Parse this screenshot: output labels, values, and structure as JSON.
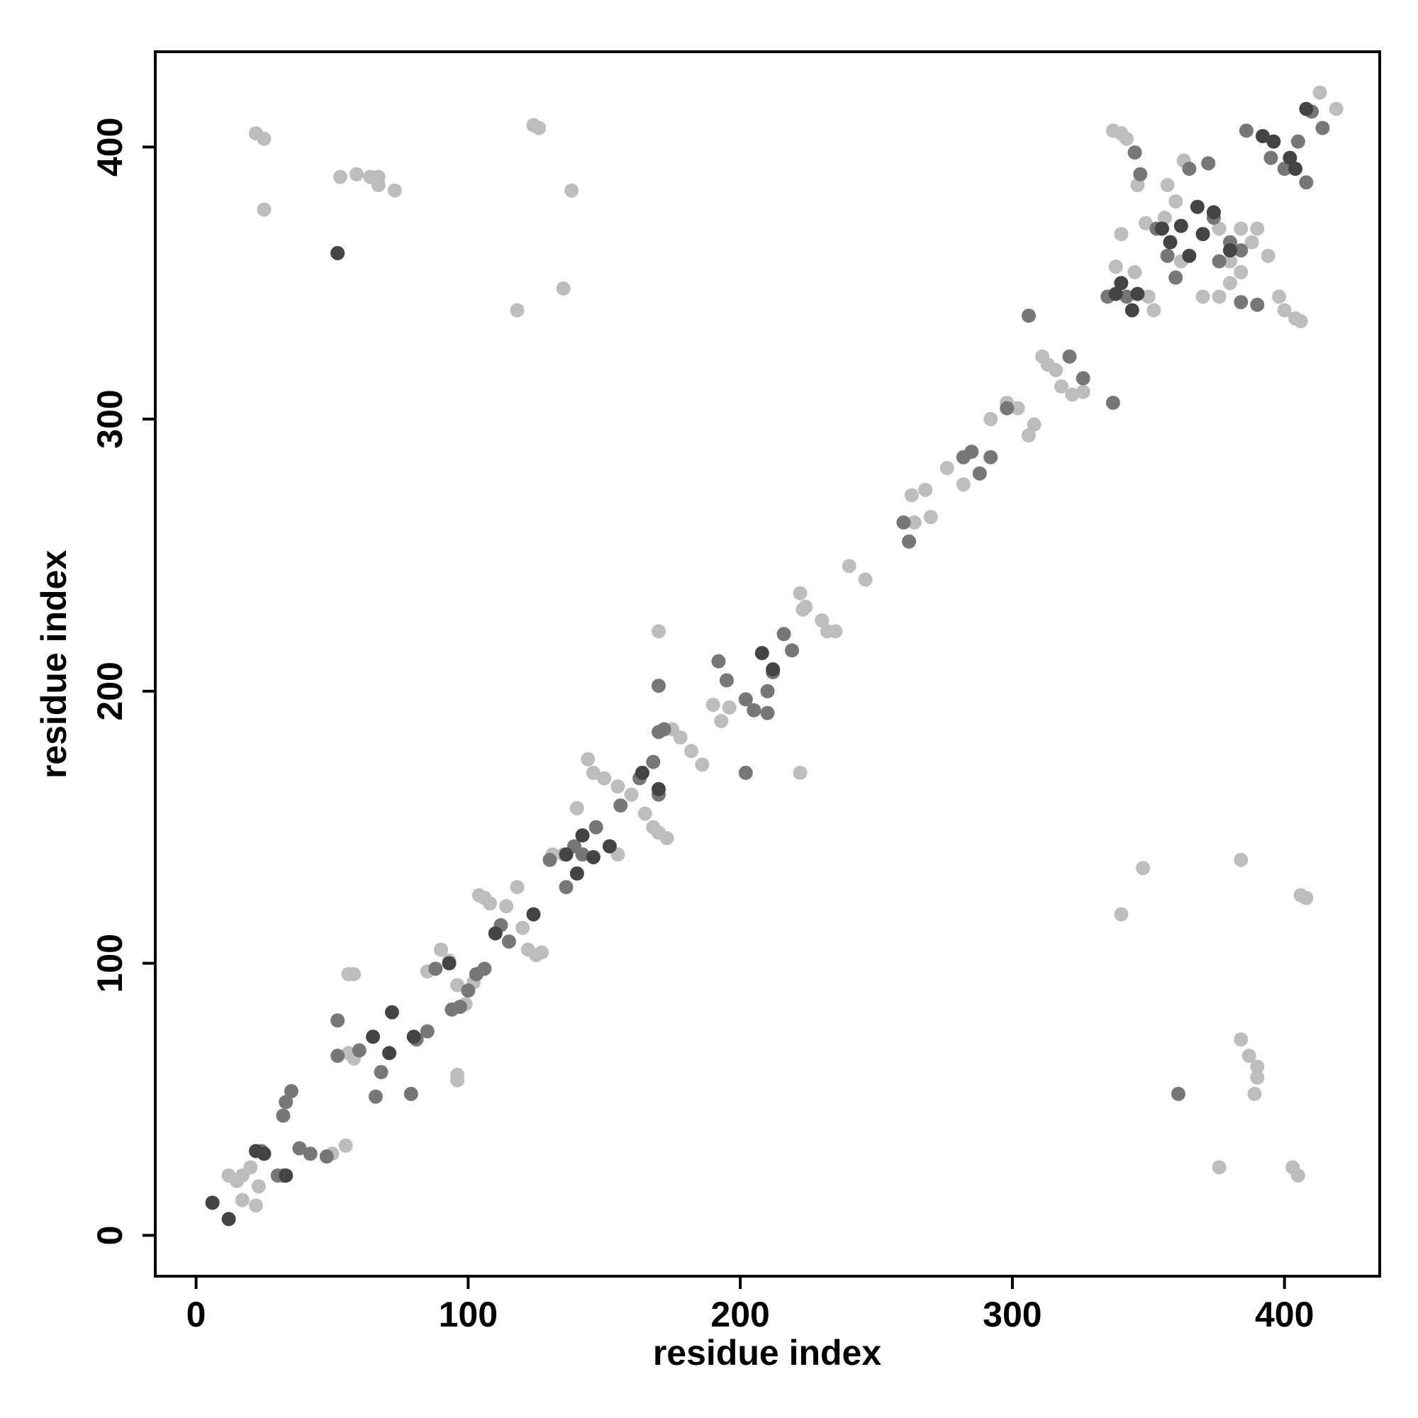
{
  "chart_data": {
    "type": "scatter",
    "x_label": "residue index",
    "y_label": "residue index",
    "xlim": [
      -15,
      435
    ],
    "ylim": [
      -15,
      435
    ],
    "xticks": [
      0,
      100,
      200,
      300,
      400
    ],
    "yticks": [
      0,
      100,
      200,
      300,
      400
    ],
    "series": [
      {
        "color": "#bdbdbd",
        "x": [
          22,
          25,
          25,
          53,
          59,
          64,
          67,
          67,
          73,
          124,
          126,
          118,
          138,
          135,
          240,
          246,
          222,
          224,
          230,
          235,
          170,
          222,
          340,
          348,
          384,
          406,
          408,
          384,
          387,
          390,
          390,
          389,
          376,
          403,
          405,
          413,
          419,
          96,
          96,
          58,
          56,
          155,
          140,
          12,
          15,
          17,
          20,
          17,
          22,
          23,
          50,
          55,
          56,
          58,
          90,
          85,
          93,
          96,
          99,
          102,
          104,
          106,
          108,
          114,
          118,
          120,
          122,
          125,
          127,
          131,
          135,
          144,
          146,
          150,
          155,
          160,
          165,
          168,
          170,
          173,
          175,
          178,
          182,
          186,
          190,
          193,
          196,
          223,
          232,
          263,
          268,
          264,
          270,
          276,
          282,
          292,
          298,
          302,
          306,
          308,
          311,
          313,
          316,
          318,
          322,
          326,
          337,
          340,
          342,
          340,
          338,
          345,
          350,
          352,
          356,
          357,
          360,
          362,
          370,
          376,
          380,
          384,
          384,
          388,
          390,
          394,
          398,
          400,
          404,
          406,
          363,
          376,
          380,
          346,
          349
        ],
        "y": [
          405,
          403,
          377,
          389,
          390,
          389,
          389,
          386,
          384,
          408,
          407,
          340,
          384,
          348,
          246,
          241,
          236,
          231,
          226,
          222,
          222,
          170,
          118,
          135,
          138,
          125,
          124,
          72,
          66,
          62,
          58,
          52,
          25,
          25,
          22,
          420,
          414,
          57,
          59,
          96,
          96,
          140,
          157,
          22,
          20,
          22,
          25,
          13,
          11,
          18,
          30,
          33,
          67,
          65,
          105,
          97,
          101,
          92,
          85,
          93,
          125,
          124,
          122,
          121,
          128,
          113,
          105,
          103,
          104,
          140,
          140,
          175,
          170,
          168,
          165,
          162,
          155,
          150,
          148,
          146,
          186,
          183,
          178,
          173,
          195,
          189,
          194,
          230,
          222,
          272,
          274,
          262,
          264,
          282,
          276,
          300,
          306,
          304,
          294,
          298,
          323,
          320,
          318,
          312,
          309,
          310,
          406,
          405,
          403,
          368,
          356,
          354,
          345,
          340,
          374,
          386,
          380,
          358,
          345,
          345,
          350,
          354,
          370,
          365,
          370,
          360,
          345,
          340,
          337,
          336,
          395,
          370,
          358,
          386,
          372
        ]
      },
      {
        "color": "#777777",
        "x": [
          52,
          52,
          66,
          79,
          32,
          33,
          35,
          30,
          32,
          24,
          38,
          42,
          48,
          60,
          68,
          81,
          85,
          88,
          94,
          97,
          100,
          103,
          106,
          115,
          112,
          130,
          136,
          139,
          142,
          147,
          156,
          163,
          170,
          168,
          170,
          172,
          170,
          192,
          195,
          202,
          205,
          210,
          212,
          216,
          219,
          202,
          210,
          262,
          260,
          282,
          285,
          288,
          292,
          298,
          306,
          321,
          326,
          337,
          335,
          342,
          345,
          347,
          353,
          357,
          360,
          365,
          372,
          374,
          376,
          380,
          384,
          384,
          390,
          395,
          400,
          405,
          408,
          414,
          410,
          361,
          386
        ],
        "y": [
          79,
          66,
          51,
          52,
          44,
          49,
          53,
          22,
          22,
          31,
          32,
          30,
          29,
          68,
          60,
          72,
          75,
          98,
          83,
          84,
          90,
          96,
          98,
          108,
          114,
          138,
          128,
          143,
          140,
          150,
          158,
          168,
          162,
          174,
          185,
          186,
          202,
          211,
          204,
          197,
          193,
          200,
          207,
          221,
          215,
          170,
          192,
          255,
          262,
          286,
          288,
          280,
          286,
          304,
          338,
          323,
          315,
          306,
          345,
          345,
          398,
          390,
          370,
          360,
          352,
          392,
          394,
          374,
          358,
          365,
          362,
          343,
          342,
          396,
          392,
          402,
          387,
          407,
          413,
          52,
          406
        ]
      },
      {
        "color": "#444444",
        "x": [
          6,
          12,
          22,
          25,
          33,
          52,
          65,
          72,
          71,
          80,
          93,
          110,
          124,
          136,
          140,
          142,
          146,
          152,
          164,
          170,
          208,
          212,
          338,
          340,
          344,
          346,
          355,
          358,
          362,
          365,
          368,
          370,
          374,
          380,
          392,
          396,
          402,
          404,
          408
        ],
        "y": [
          12,
          6,
          31,
          30,
          22,
          361,
          73,
          82,
          67,
          73,
          100,
          111,
          118,
          140,
          133,
          147,
          139,
          143,
          170,
          164,
          214,
          208,
          346,
          350,
          340,
          346,
          370,
          365,
          371,
          360,
          378,
          368,
          376,
          362,
          404,
          402,
          396,
          392,
          414
        ]
      }
    ]
  }
}
